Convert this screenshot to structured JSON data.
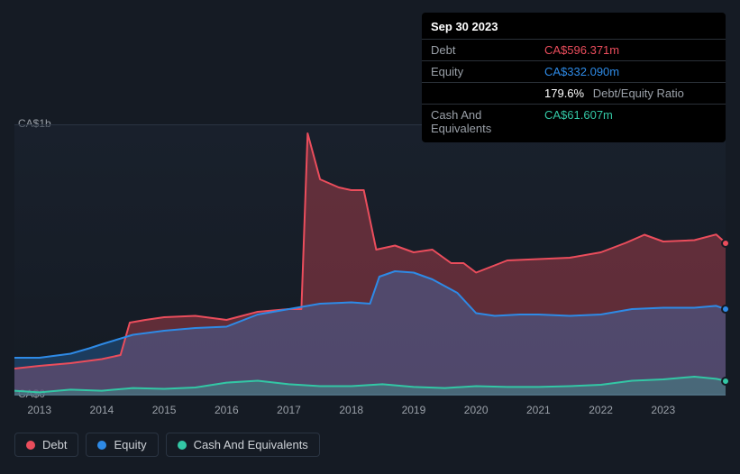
{
  "tooltip": {
    "date": "Sep 30 2023",
    "rows": [
      {
        "label": "Debt",
        "value": "CA$596.371m",
        "color": "#eb4d5c"
      },
      {
        "label": "Equity",
        "value": "CA$332.090m",
        "color": "#2e8ae6"
      },
      {
        "label": "",
        "value": "179.6%",
        "extra": "Debt/Equity Ratio",
        "color": "#ffffff"
      },
      {
        "label": "Cash And Equivalents",
        "value": "CA$61.607m",
        "color": "#33c7a5"
      }
    ]
  },
  "chart": {
    "type": "area",
    "background": "#151b24",
    "grid_color": "#2a3442",
    "y_axis": {
      "ticks": [
        {
          "value": 0,
          "label": "CA$0"
        },
        {
          "value": 1000,
          "label": "CA$1b"
        }
      ],
      "min": 0,
      "max": 1000,
      "label_color": "#9aa0a8",
      "label_fontsize": 12
    },
    "x_axis": {
      "min": 2012.6,
      "max": 2024.0,
      "ticks": [
        2013,
        2014,
        2015,
        2016,
        2017,
        2018,
        2019,
        2020,
        2021,
        2022,
        2023
      ],
      "label_color": "#9aa0a8",
      "label_fontsize": 12
    },
    "series": [
      {
        "name": "Debt",
        "color": "#eb4d5c",
        "fill_opacity": 0.35,
        "line_width": 2,
        "data": [
          [
            2012.6,
            100
          ],
          [
            2013.0,
            110
          ],
          [
            2013.5,
            120
          ],
          [
            2014.0,
            135
          ],
          [
            2014.3,
            150
          ],
          [
            2014.45,
            270
          ],
          [
            2014.7,
            280
          ],
          [
            2015.0,
            290
          ],
          [
            2015.5,
            295
          ],
          [
            2016.0,
            280
          ],
          [
            2016.5,
            310
          ],
          [
            2017.0,
            320
          ],
          [
            2017.2,
            320
          ],
          [
            2017.3,
            970
          ],
          [
            2017.5,
            800
          ],
          [
            2017.8,
            770
          ],
          [
            2018.0,
            760
          ],
          [
            2018.2,
            760
          ],
          [
            2018.4,
            540
          ],
          [
            2018.7,
            555
          ],
          [
            2019.0,
            530
          ],
          [
            2019.3,
            540
          ],
          [
            2019.6,
            490
          ],
          [
            2019.8,
            490
          ],
          [
            2020.0,
            455
          ],
          [
            2020.5,
            500
          ],
          [
            2021.0,
            505
          ],
          [
            2021.5,
            510
          ],
          [
            2022.0,
            530
          ],
          [
            2022.4,
            565
          ],
          [
            2022.7,
            595
          ],
          [
            2023.0,
            570
          ],
          [
            2023.5,
            575
          ],
          [
            2023.85,
            596
          ],
          [
            2024.0,
            565
          ]
        ]
      },
      {
        "name": "Equity",
        "color": "#2e8ae6",
        "fill_opacity": 0.3,
        "line_width": 2,
        "data": [
          [
            2012.6,
            140
          ],
          [
            2013.0,
            140
          ],
          [
            2013.5,
            155
          ],
          [
            2013.8,
            175
          ],
          [
            2014.0,
            190
          ],
          [
            2014.5,
            225
          ],
          [
            2015.0,
            240
          ],
          [
            2015.5,
            250
          ],
          [
            2016.0,
            255
          ],
          [
            2016.5,
            300
          ],
          [
            2017.0,
            320
          ],
          [
            2017.5,
            340
          ],
          [
            2018.0,
            345
          ],
          [
            2018.3,
            340
          ],
          [
            2018.45,
            440
          ],
          [
            2018.7,
            460
          ],
          [
            2019.0,
            455
          ],
          [
            2019.3,
            430
          ],
          [
            2019.7,
            380
          ],
          [
            2020.0,
            305
          ],
          [
            2020.3,
            295
          ],
          [
            2020.7,
            300
          ],
          [
            2021.0,
            300
          ],
          [
            2021.5,
            295
          ],
          [
            2022.0,
            300
          ],
          [
            2022.5,
            320
          ],
          [
            2023.0,
            325
          ],
          [
            2023.5,
            325
          ],
          [
            2023.85,
            332
          ],
          [
            2024.0,
            320
          ]
        ]
      },
      {
        "name": "Cash And Equivalents",
        "color": "#33c7a5",
        "fill_opacity": 0.25,
        "line_width": 2,
        "data": [
          [
            2012.6,
            18
          ],
          [
            2013.0,
            12
          ],
          [
            2013.5,
            22
          ],
          [
            2014.0,
            18
          ],
          [
            2014.5,
            28
          ],
          [
            2015.0,
            25
          ],
          [
            2015.5,
            30
          ],
          [
            2016.0,
            48
          ],
          [
            2016.5,
            55
          ],
          [
            2017.0,
            42
          ],
          [
            2017.5,
            35
          ],
          [
            2018.0,
            35
          ],
          [
            2018.5,
            42
          ],
          [
            2019.0,
            32
          ],
          [
            2019.5,
            28
          ],
          [
            2020.0,
            35
          ],
          [
            2020.5,
            32
          ],
          [
            2021.0,
            32
          ],
          [
            2021.5,
            35
          ],
          [
            2022.0,
            40
          ],
          [
            2022.5,
            55
          ],
          [
            2023.0,
            60
          ],
          [
            2023.5,
            70
          ],
          [
            2023.85,
            62
          ],
          [
            2024.0,
            55
          ]
        ]
      }
    ],
    "markers": [
      {
        "series": "Debt",
        "x": 2024.0,
        "y": 565,
        "color": "#eb4d5c"
      },
      {
        "series": "Equity",
        "x": 2024.0,
        "y": 320,
        "color": "#2e8ae6"
      },
      {
        "series": "Cash And Equivalents",
        "x": 2024.0,
        "y": 55,
        "color": "#33c7a5"
      }
    ]
  },
  "legend": [
    {
      "label": "Debt",
      "color": "#eb4d5c"
    },
    {
      "label": "Equity",
      "color": "#2e8ae6"
    },
    {
      "label": "Cash And Equivalents",
      "color": "#33c7a5"
    }
  ]
}
